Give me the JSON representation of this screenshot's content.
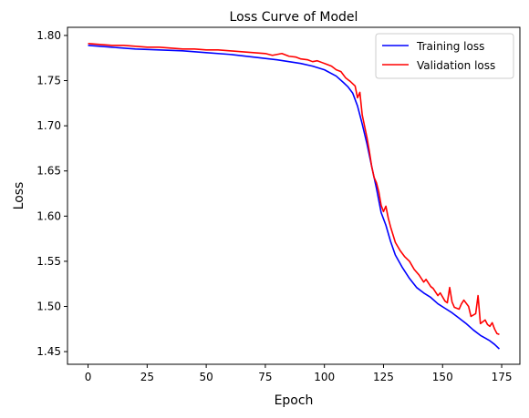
{
  "chart_data": {
    "type": "line",
    "title": "Loss Curve of Model",
    "xlabel": "Epoch",
    "ylabel": "Loss",
    "xlim": [
      -8.7,
      182.7
    ],
    "ylim": [
      1.436,
      1.809
    ],
    "xticks": [
      0,
      25,
      50,
      75,
      100,
      125,
      150,
      175
    ],
    "yticks": [
      1.45,
      1.5,
      1.55,
      1.6,
      1.65,
      1.7,
      1.75,
      1.8
    ],
    "ytick_labels": [
      "1.45",
      "1.50",
      "1.55",
      "1.60",
      "1.65",
      "1.70",
      "1.75",
      "1.80"
    ],
    "grid": false,
    "legend_position": "top-right",
    "series": [
      {
        "name": "Training loss",
        "color": "#0000ff",
        "points": [
          [
            0,
            1.789
          ],
          [
            10,
            1.787
          ],
          [
            20,
            1.785
          ],
          [
            30,
            1.784
          ],
          [
            40,
            1.783
          ],
          [
            50,
            1.781
          ],
          [
            60,
            1.779
          ],
          [
            70,
            1.776
          ],
          [
            80,
            1.773
          ],
          [
            90,
            1.769
          ],
          [
            95,
            1.766
          ],
          [
            100,
            1.762
          ],
          [
            105,
            1.755
          ],
          [
            108,
            1.748
          ],
          [
            110,
            1.743
          ],
          [
            112,
            1.736
          ],
          [
            114,
            1.722
          ],
          [
            116,
            1.702
          ],
          [
            118,
            1.68
          ],
          [
            120,
            1.655
          ],
          [
            122,
            1.631
          ],
          [
            124,
            1.604
          ],
          [
            126,
            1.59
          ],
          [
            128,
            1.572
          ],
          [
            130,
            1.557
          ],
          [
            133,
            1.543
          ],
          [
            136,
            1.531
          ],
          [
            139,
            1.521
          ],
          [
            142,
            1.515
          ],
          [
            145,
            1.51
          ],
          [
            148,
            1.503
          ],
          [
            151,
            1.498
          ],
          [
            154,
            1.493
          ],
          [
            157,
            1.487
          ],
          [
            160,
            1.481
          ],
          [
            163,
            1.474
          ],
          [
            166,
            1.468
          ],
          [
            168,
            1.465
          ],
          [
            170,
            1.462
          ],
          [
            172,
            1.458
          ],
          [
            174,
            1.453
          ]
        ]
      },
      {
        "name": "Validation loss",
        "color": "#ff0000",
        "points": [
          [
            0,
            1.791
          ],
          [
            5,
            1.79
          ],
          [
            10,
            1.789
          ],
          [
            15,
            1.789
          ],
          [
            20,
            1.788
          ],
          [
            25,
            1.787
          ],
          [
            30,
            1.787
          ],
          [
            35,
            1.786
          ],
          [
            40,
            1.785
          ],
          [
            45,
            1.785
          ],
          [
            50,
            1.784
          ],
          [
            55,
            1.784
          ],
          [
            60,
            1.783
          ],
          [
            65,
            1.782
          ],
          [
            70,
            1.781
          ],
          [
            75,
            1.78
          ],
          [
            78,
            1.778
          ],
          [
            82,
            1.78
          ],
          [
            85,
            1.777
          ],
          [
            88,
            1.776
          ],
          [
            90,
            1.774
          ],
          [
            93,
            1.773
          ],
          [
            95,
            1.771
          ],
          [
            97,
            1.772
          ],
          [
            99,
            1.77
          ],
          [
            101,
            1.768
          ],
          [
            103,
            1.766
          ],
          [
            105,
            1.762
          ],
          [
            107,
            1.76
          ],
          [
            109,
            1.753
          ],
          [
            111,
            1.749
          ],
          [
            113,
            1.744
          ],
          [
            114,
            1.731
          ],
          [
            115,
            1.737
          ],
          [
            116,
            1.712
          ],
          [
            118,
            1.687
          ],
          [
            119,
            1.672
          ],
          [
            120,
            1.655
          ],
          [
            121,
            1.643
          ],
          [
            122,
            1.637
          ],
          [
            123,
            1.627
          ],
          [
            124,
            1.612
          ],
          [
            125,
            1.605
          ],
          [
            126,
            1.611
          ],
          [
            127,
            1.598
          ],
          [
            128,
            1.588
          ],
          [
            130,
            1.571
          ],
          [
            132,
            1.562
          ],
          [
            134,
            1.555
          ],
          [
            136,
            1.55
          ],
          [
            138,
            1.541
          ],
          [
            140,
            1.535
          ],
          [
            142,
            1.527
          ],
          [
            143,
            1.53
          ],
          [
            145,
            1.522
          ],
          [
            146,
            1.52
          ],
          [
            148,
            1.512
          ],
          [
            149,
            1.515
          ],
          [
            151,
            1.506
          ],
          [
            152,
            1.504
          ],
          [
            153,
            1.521
          ],
          [
            154,
            1.505
          ],
          [
            155,
            1.499
          ],
          [
            157,
            1.497
          ],
          [
            158,
            1.503
          ],
          [
            159,
            1.507
          ],
          [
            161,
            1.5
          ],
          [
            162,
            1.489
          ],
          [
            164,
            1.492
          ],
          [
            165,
            1.512
          ],
          [
            166,
            1.481
          ],
          [
            167,
            1.483
          ],
          [
            168,
            1.485
          ],
          [
            169,
            1.48
          ],
          [
            170,
            1.478
          ],
          [
            171,
            1.482
          ],
          [
            172,
            1.475
          ],
          [
            173,
            1.47
          ],
          [
            174,
            1.469
          ]
        ]
      }
    ]
  }
}
